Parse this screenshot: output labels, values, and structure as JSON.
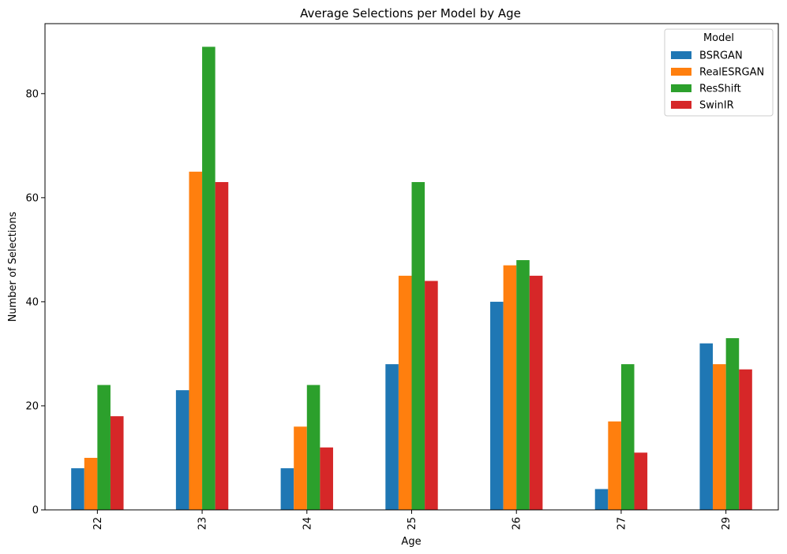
{
  "chart_data": {
    "type": "bar",
    "title": "Average Selections per Model by Age",
    "xlabel": "Age",
    "ylabel": "Number of Selections",
    "categories": [
      "22",
      "23",
      "24",
      "25",
      "26",
      "27",
      "29"
    ],
    "ylim": [
      0,
      93.45
    ],
    "yticks": [
      0,
      20,
      40,
      60,
      80
    ],
    "grid": false,
    "legend": {
      "title": "Model",
      "placement": "top-right"
    },
    "series": [
      {
        "name": "BSRGAN",
        "color": "#1f77b4",
        "values": [
          8,
          23,
          8,
          28,
          40,
          4,
          32
        ]
      },
      {
        "name": "RealESRGAN",
        "color": "#ff7f0e",
        "values": [
          10,
          65,
          16,
          45,
          47,
          17,
          28
        ]
      },
      {
        "name": "ResShift",
        "color": "#2ca02c",
        "values": [
          24,
          89,
          24,
          63,
          48,
          28,
          33
        ]
      },
      {
        "name": "SwinIR",
        "color": "#d62728",
        "values": [
          18,
          63,
          12,
          44,
          45,
          11,
          27
        ]
      }
    ]
  }
}
